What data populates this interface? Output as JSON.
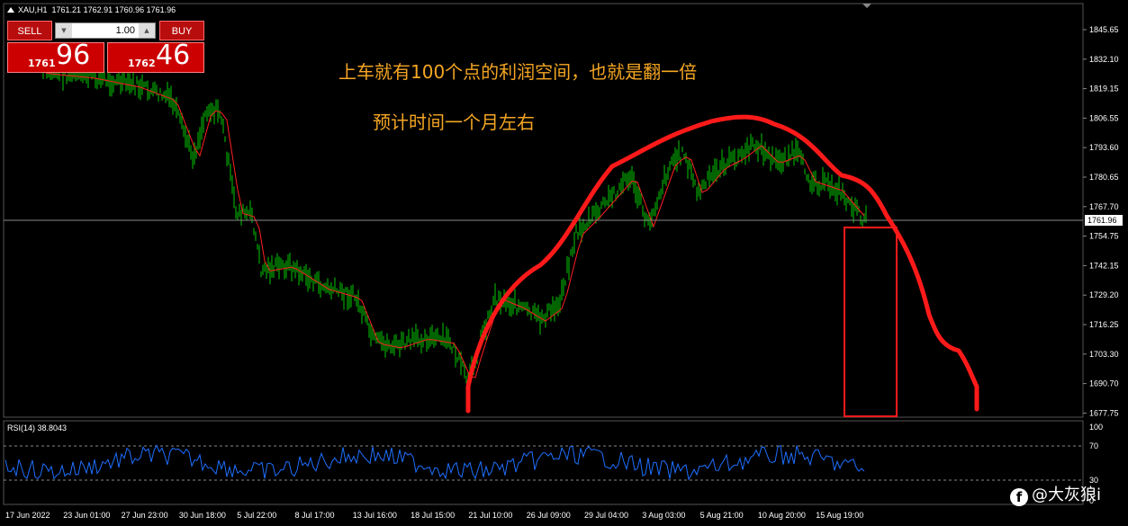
{
  "header": {
    "symbol": "XAU,H1",
    "ohlc": "1761.21 1762.91 1760.96 1761.96"
  },
  "trade_panel": {
    "sell_label": "SELL",
    "buy_label": "BUY",
    "lot_value": "1.00",
    "sell_price_small": "1761",
    "sell_price_big": "96",
    "buy_price_small": "1762",
    "buy_price_big": "46"
  },
  "annotations": {
    "line1": "上车就有100个点的利润空间，也就是翻一倍",
    "line2": "预计时间一个月左右"
  },
  "price_axis": {
    "labels": [
      "1845.65",
      "1832.10",
      "1819.15",
      "1806.55",
      "1793.60",
      "1780.65",
      "1767.70",
      "1754.75",
      "1742.15",
      "1729.20",
      "1716.25",
      "1703.30",
      "1690.70",
      "1677.75"
    ],
    "current_price": "1761.96"
  },
  "rsi": {
    "title": "RSI(14) 38.8043",
    "levels": [
      "100",
      "70",
      "30",
      "0"
    ]
  },
  "time_axis": {
    "labels": [
      "17 Jun 2022",
      "23 Jun 01:00",
      "27 Jun 23:00",
      "30 Jun 18:00",
      "5 Jul 22:00",
      "8 Jul 17:00",
      "13 Jul 16:00",
      "18 Jul 15:00",
      "21 Jul 10:00",
      "26 Jul 09:00",
      "29 Jul 04:00",
      "3 Aug 03:00",
      "5 Aug 21:00",
      "10 Aug 20:00",
      "15 Aug 19:00"
    ]
  },
  "watermark": {
    "icon": "facebook-icon",
    "text": "@大灰狼i"
  },
  "colors": {
    "candle": "#00c800",
    "ma": "#ff2020",
    "drawing": "#ff1a1a",
    "rsi": "#1e6fff",
    "annotation": "#f5a623"
  }
}
